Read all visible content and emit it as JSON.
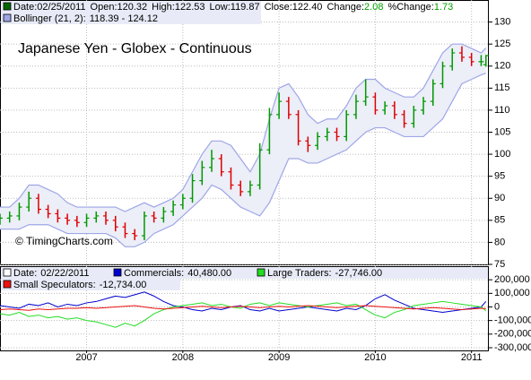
{
  "chart_data": [
    {
      "type": "ohlc",
      "title": "Japanese Yen - Globex - Continuous",
      "watermark": "© TimingCharts.com",
      "header": [
        {
          "label": "Date:",
          "value": "02/25/2011"
        },
        {
          "label": "Open:",
          "value": "120.32"
        },
        {
          "label": "High:",
          "value": "122.53"
        },
        {
          "label": "Low:",
          "value": "119.87"
        },
        {
          "label": "Close:",
          "value": "122.40"
        },
        {
          "label": "Change:",
          "value": "2.08",
          "color": "#00a000"
        },
        {
          "label": "%Change:",
          "value": "1.73",
          "color": "#00a000"
        }
      ],
      "header_color": "#006600",
      "up_color": "#009900",
      "down_color": "#dd0000",
      "x": [
        2006.1,
        2006.2,
        2006.3,
        2006.4,
        2006.5,
        2006.6,
        2006.7,
        2006.8,
        2006.9,
        2007.0,
        2007.1,
        2007.2,
        2007.3,
        2007.4,
        2007.5,
        2007.6,
        2007.7,
        2007.8,
        2007.9,
        2008.0,
        2008.1,
        2008.2,
        2008.3,
        2008.4,
        2008.5,
        2008.6,
        2008.7,
        2008.8,
        2008.9,
        2009.0,
        2009.1,
        2009.2,
        2009.3,
        2009.4,
        2009.5,
        2009.6,
        2009.7,
        2009.8,
        2009.9,
        2010.0,
        2010.1,
        2010.2,
        2010.3,
        2010.4,
        2010.5,
        2010.6,
        2010.7,
        2010.8,
        2010.9,
        2011.0,
        2011.1,
        2011.15
      ],
      "open": [
        85,
        85.5,
        86,
        88,
        90,
        87.5,
        86.5,
        85.5,
        85,
        84.5,
        85.5,
        86,
        85,
        83.5,
        82,
        81.5,
        86,
        85.5,
        87,
        88.5,
        90,
        94,
        97,
        99,
        96,
        93,
        91.5,
        93,
        101,
        109,
        112,
        109,
        103,
        102,
        104,
        105,
        104,
        109,
        112,
        113,
        110,
        111,
        109,
        107,
        110,
        112,
        116,
        120,
        123,
        122,
        121,
        120.32
      ],
      "high": [
        86.5,
        87,
        89,
        91.5,
        91,
        88.5,
        87.5,
        86.5,
        86,
        86.5,
        87,
        87,
        86,
        84.5,
        83,
        87,
        87,
        88,
        89.5,
        91,
        95.5,
        98.5,
        101,
        100,
        97,
        94,
        94,
        102.5,
        110.5,
        114,
        113,
        110,
        104,
        105,
        106,
        106,
        110,
        113.5,
        117,
        114,
        112,
        112,
        110,
        111,
        113,
        117,
        121,
        124,
        124.5,
        123,
        122.5,
        122.53
      ],
      "low": [
        84,
        84.5,
        85,
        87,
        86.5,
        85.5,
        84.5,
        84,
        83.5,
        83.5,
        84.5,
        84,
        82.5,
        81,
        80.5,
        80.5,
        84.5,
        84.5,
        86,
        87.5,
        89,
        93,
        96,
        95,
        92,
        90.5,
        90.5,
        92,
        100,
        108,
        108,
        102,
        100.5,
        101,
        103,
        103,
        103,
        108,
        111,
        109,
        109,
        108,
        106,
        106,
        109,
        111,
        115,
        119,
        121,
        120,
        120,
        119.87
      ],
      "close": [
        85.5,
        86,
        88,
        90,
        87.5,
        86.5,
        85.5,
        85,
        84.5,
        85.5,
        86,
        85,
        83.5,
        82,
        81.5,
        86,
        85.5,
        87,
        88.5,
        90,
        94,
        97,
        99,
        96,
        93,
        91.5,
        93,
        101,
        109,
        112,
        109,
        103,
        102,
        104,
        105,
        104,
        109,
        112,
        113,
        110,
        111,
        109,
        107,
        110,
        112,
        116,
        120,
        123,
        122,
        121,
        121,
        122.4
      ],
      "bands": {
        "name": "Bollinger (21, 2):",
        "label": "118.39 - 124.12",
        "color": "#9fa6e6",
        "fill": "#eceef8",
        "upper": [
          88,
          88,
          90,
          93,
          93,
          92,
          91,
          89,
          88,
          88,
          88,
          88,
          88,
          87,
          88,
          89,
          88,
          89,
          90,
          92,
          96,
          100,
          103,
          103,
          102,
          99,
          96,
          100,
          108,
          115,
          116,
          113,
          109,
          107,
          108,
          108,
          111,
          115,
          117,
          117,
          115,
          114,
          113,
          113,
          115,
          119,
          123,
          125,
          125,
          124,
          123,
          124.12
        ],
        "lower": [
          83,
          83,
          83,
          84,
          84,
          84,
          83,
          82,
          82,
          82,
          82,
          82,
          81,
          79,
          79,
          80,
          82,
          83,
          84,
          86,
          88,
          90,
          93,
          92,
          90,
          88,
          87,
          86,
          89,
          94,
          99,
          99,
          98,
          98,
          99,
          100,
          101,
          103,
          105,
          106,
          106,
          105,
          104,
          104,
          104,
          106,
          108,
          112,
          116,
          117,
          118,
          118.39
        ]
      },
      "xlim": [
        2006.1,
        2011.18
      ],
      "xticks": [
        2007,
        2008,
        2009,
        2010,
        2011
      ],
      "ylim": [
        75,
        135
      ],
      "yticks": [
        75,
        80,
        85,
        90,
        95,
        100,
        105,
        110,
        115,
        120,
        125,
        130
      ],
      "grid": true
    },
    {
      "type": "line",
      "header": [
        {
          "label": "Date:",
          "value": "02/22/2011"
        }
      ],
      "x": [
        2006.1,
        2006.2,
        2006.3,
        2006.4,
        2006.5,
        2006.6,
        2006.7,
        2006.8,
        2006.9,
        2007.0,
        2007.1,
        2007.2,
        2007.3,
        2007.4,
        2007.5,
        2007.6,
        2007.7,
        2007.8,
        2007.9,
        2008.0,
        2008.1,
        2008.2,
        2008.3,
        2008.4,
        2008.5,
        2008.6,
        2008.7,
        2008.8,
        2008.9,
        2009.0,
        2009.1,
        2009.2,
        2009.3,
        2009.4,
        2009.5,
        2009.6,
        2009.7,
        2009.8,
        2009.9,
        2010.0,
        2010.1,
        2010.2,
        2010.3,
        2010.4,
        2010.5,
        2010.6,
        2010.7,
        2010.8,
        2010.9,
        2011.0,
        2011.1,
        2011.15
      ],
      "series": [
        {
          "name": "Commercials:",
          "last_label": "40,480.00",
          "color": "#0000cc",
          "values": [
            10000,
            0,
            -10000,
            20000,
            10000,
            30000,
            0,
            20000,
            10000,
            30000,
            40000,
            60000,
            80000,
            70000,
            90000,
            110000,
            80000,
            40000,
            10000,
            0,
            -20000,
            -30000,
            -10000,
            -20000,
            0,
            10000,
            -20000,
            -30000,
            -10000,
            -30000,
            -20000,
            -10000,
            0,
            -10000,
            -20000,
            -30000,
            -10000,
            -20000,
            10000,
            60000,
            90000,
            50000,
            20000,
            -10000,
            -20000,
            -30000,
            -40000,
            -30000,
            -20000,
            -10000,
            0,
            40480
          ]
        },
        {
          "name": "Large Traders:",
          "last_label": "-27,746.00",
          "color": "#22dd22",
          "values": [
            -50000,
            -60000,
            -40000,
            -70000,
            -60000,
            -80000,
            -70000,
            -90000,
            -80000,
            -100000,
            -110000,
            -130000,
            -150000,
            -120000,
            -140000,
            -100000,
            -50000,
            -20000,
            0,
            10000,
            20000,
            30000,
            10000,
            20000,
            0,
            -10000,
            20000,
            30000,
            10000,
            30000,
            20000,
            10000,
            0,
            10000,
            20000,
            30000,
            10000,
            20000,
            -20000,
            -60000,
            -80000,
            -40000,
            -20000,
            10000,
            20000,
            30000,
            40000,
            30000,
            20000,
            10000,
            0,
            -27746
          ]
        },
        {
          "name": "Small Speculators:",
          "last_label": "-12,734.00",
          "color": "#ee1111",
          "values": [
            -20000,
            -15000,
            -20000,
            -25000,
            -15000,
            -20000,
            -15000,
            -10000,
            -10000,
            -5000,
            -10000,
            -5000,
            0,
            5000,
            10000,
            0,
            -10000,
            -15000,
            -10000,
            -5000,
            0,
            5000,
            0,
            -5000,
            0,
            5000,
            0,
            -5000,
            0,
            5000,
            0,
            5000,
            10000,
            5000,
            0,
            -5000,
            0,
            5000,
            10000,
            5000,
            0,
            -5000,
            -10000,
            -15000,
            -10000,
            -5000,
            -10000,
            -15000,
            -20000,
            -15000,
            -10000,
            -12734
          ]
        }
      ],
      "xlim": [
        2006.1,
        2011.18
      ],
      "xticks": [
        2007,
        2008,
        2009,
        2010,
        2011
      ],
      "ylim": [
        -320000,
        300000
      ],
      "yticks": [
        {
          "value": 200000,
          "label": "200,000"
        },
        {
          "value": 100000,
          "label": "100,000"
        },
        0,
        {
          "value": -100000,
          "label": "-100,000"
        },
        {
          "value": -200000,
          "label": "-200,000"
        },
        {
          "value": -300000,
          "label": "-300,000"
        }
      ],
      "grid": true
    }
  ]
}
